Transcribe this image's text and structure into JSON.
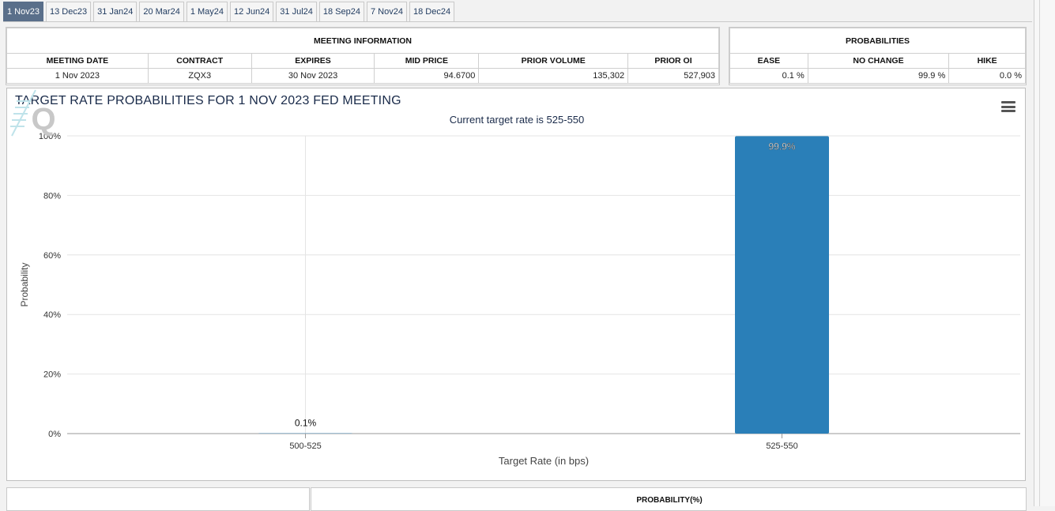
{
  "tabs": [
    {
      "label": "1 Nov23",
      "active": true
    },
    {
      "label": "13 Dec23"
    },
    {
      "label": "31 Jan24"
    },
    {
      "label": "20 Mar24"
    },
    {
      "label": "1 May24"
    },
    {
      "label": "12 Jun24"
    },
    {
      "label": "31 Jul24"
    },
    {
      "label": "18 Sep24"
    },
    {
      "label": "7 Nov24"
    },
    {
      "label": "18 Dec24"
    }
  ],
  "meeting_info": {
    "title": "MEETING INFORMATION",
    "headers": [
      "MEETING DATE",
      "CONTRACT",
      "EXPIRES",
      "MID PRICE",
      "PRIOR VOLUME",
      "PRIOR OI"
    ],
    "row": [
      "1 Nov 2023",
      "ZQX3",
      "30 Nov 2023",
      "94.6700",
      "135,302",
      "527,903"
    ]
  },
  "probabilities": {
    "title": "PROBABILITIES",
    "headers": [
      "EASE",
      "NO CHANGE",
      "HIKE"
    ],
    "row": [
      "0.1 %",
      "99.9 %",
      "0.0 %"
    ]
  },
  "chart_data": {
    "type": "bar",
    "title": "TARGET RATE PROBABILITIES FOR 1 NOV 2023 FED MEETING",
    "subtitle": "Current target rate is 525-550",
    "xlabel": "Target Rate (in bps)",
    "ylabel": "Probability",
    "categories": [
      "500-525",
      "525-550"
    ],
    "values": [
      0.1,
      99.9
    ],
    "data_labels": [
      "0.1%",
      "99.9%"
    ],
    "ylim": [
      0,
      100
    ],
    "yticks": [
      "0%",
      "20%",
      "40%",
      "60%",
      "80%",
      "100%"
    ],
    "grid": true,
    "bar_color": "#2a7fb8"
  },
  "bottom": {
    "probability_header": "PROBABILITY(%)"
  }
}
